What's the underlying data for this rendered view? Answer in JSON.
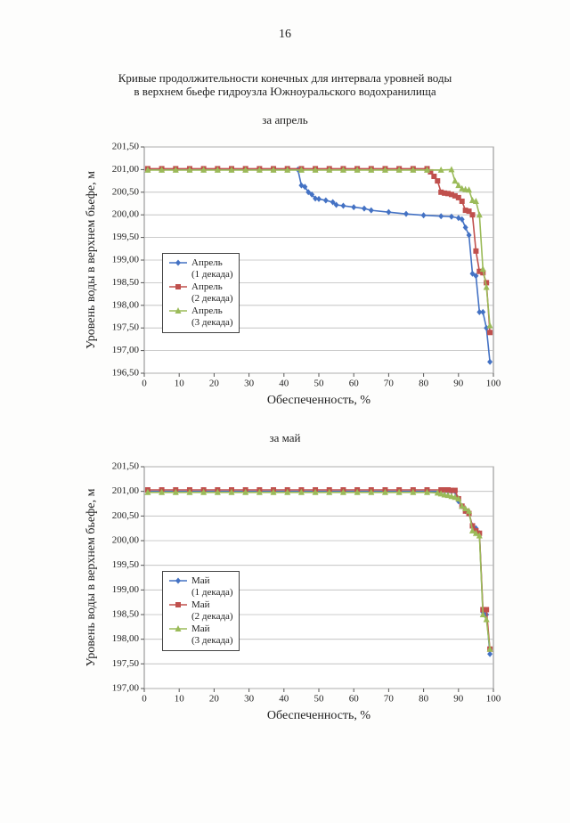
{
  "page_number": "16",
  "title": "Кривые продолжительности конечных для интервала уровней воды\nв верхнем бьефе гидроузла Южноуральского водохранилища",
  "chart_data": [
    {
      "type": "line",
      "title": "за апрель",
      "x_label": "Обеспеченность, %",
      "y_label": "Уровень воды в верхнем бьефе, м",
      "xlim": [
        0,
        100
      ],
      "xticks": [
        0,
        10,
        20,
        30,
        40,
        50,
        60,
        70,
        80,
        90,
        100
      ],
      "ylim": [
        196.5,
        201.5
      ],
      "yticks": [
        {
          "value": 196.5,
          "label": "196,50"
        },
        {
          "value": 197,
          "label": "197,00"
        },
        {
          "value": 197.5,
          "label": "197,50"
        },
        {
          "value": 198,
          "label": "198,00"
        },
        {
          "value": 198.5,
          "label": "198,50"
        },
        {
          "value": 199,
          "label": "199,00"
        },
        {
          "value": 199.5,
          "label": "199,50"
        },
        {
          "value": 200,
          "label": "200,00"
        },
        {
          "value": 200.5,
          "label": "200,50"
        },
        {
          "value": 201,
          "label": "201,00"
        },
        {
          "value": 201.5,
          "label": "201,50"
        }
      ],
      "grid": true,
      "legend": "left",
      "series": [
        {
          "name": "Апрель\n(1 декада)",
          "color": "#4472c4",
          "marker": "diamond",
          "x": [
            1,
            5,
            9,
            13,
            17,
            21,
            25,
            29,
            33,
            37,
            41,
            44,
            45,
            46,
            47,
            48,
            49,
            50,
            52,
            54,
            55,
            57,
            60,
            63,
            65,
            70,
            75,
            80,
            85,
            88,
            90,
            91,
            92,
            93,
            94,
            95,
            96,
            97,
            98,
            99
          ],
          "values": [
            201.0,
            201.0,
            201.0,
            201.0,
            201.0,
            201.0,
            201.0,
            201.0,
            201.0,
            201.0,
            201.0,
            201.0,
            200.65,
            200.62,
            200.5,
            200.45,
            200.36,
            200.35,
            200.32,
            200.28,
            200.22,
            200.2,
            200.17,
            200.14,
            200.1,
            200.06,
            200.02,
            199.99,
            199.97,
            199.96,
            199.93,
            199.9,
            199.72,
            199.55,
            198.7,
            198.65,
            197.85,
            197.85,
            197.5,
            196.75
          ]
        },
        {
          "name": "Апрель\n(2 декада)",
          "color": "#c0504d",
          "marker": "square",
          "x": [
            1,
            5,
            9,
            13,
            17,
            21,
            25,
            29,
            33,
            37,
            41,
            45,
            49,
            53,
            57,
            61,
            65,
            69,
            73,
            77,
            81,
            82,
            83,
            84,
            85,
            86,
            87,
            88,
            89,
            90,
            91,
            92,
            93,
            94,
            95,
            96,
            97,
            98,
            99
          ],
          "values": [
            201.02,
            201.02,
            201.02,
            201.02,
            201.02,
            201.02,
            201.02,
            201.02,
            201.02,
            201.02,
            201.02,
            201.02,
            201.02,
            201.02,
            201.02,
            201.02,
            201.02,
            201.02,
            201.02,
            201.02,
            201.02,
            200.95,
            200.85,
            200.75,
            200.5,
            200.48,
            200.47,
            200.45,
            200.42,
            200.38,
            200.3,
            200.1,
            200.08,
            200.0,
            199.2,
            198.75,
            198.72,
            198.5,
            197.4
          ]
        },
        {
          "name": "Апрель\n(3 декада)",
          "color": "#9bbb59",
          "marker": "triangle",
          "x": [
            1,
            5,
            9,
            13,
            17,
            21,
            25,
            29,
            33,
            37,
            41,
            45,
            49,
            53,
            57,
            61,
            65,
            69,
            73,
            77,
            81,
            85,
            88,
            89,
            90,
            91,
            92,
            93,
            94,
            95,
            96,
            97,
            98,
            99
          ],
          "values": [
            200.99,
            200.99,
            200.99,
            200.99,
            200.99,
            200.99,
            200.99,
            200.99,
            200.99,
            200.99,
            200.99,
            200.99,
            200.99,
            200.99,
            200.99,
            200.99,
            200.99,
            200.99,
            200.99,
            200.99,
            200.99,
            200.99,
            201.0,
            200.75,
            200.65,
            200.58,
            200.56,
            200.55,
            200.32,
            200.3,
            200.0,
            198.8,
            198.4,
            197.55
          ]
        }
      ]
    },
    {
      "type": "line",
      "title": "за май",
      "x_label": "Обеспеченность, %",
      "y_label": "Уровень воды в верхнем бьефе, м",
      "xlim": [
        0,
        100
      ],
      "xticks": [
        0,
        10,
        20,
        30,
        40,
        50,
        60,
        70,
        80,
        90,
        100
      ],
      "ylim": [
        197,
        201.5
      ],
      "yticks": [
        {
          "value": 197,
          "label": "197,00"
        },
        {
          "value": 197.5,
          "label": "197,50"
        },
        {
          "value": 198,
          "label": "198,00"
        },
        {
          "value": 198.5,
          "label": "198,50"
        },
        {
          "value": 199,
          "label": "199,00"
        },
        {
          "value": 199.5,
          "label": "199,50"
        },
        {
          "value": 200,
          "label": "200,00"
        },
        {
          "value": 200.5,
          "label": "200,50"
        },
        {
          "value": 201,
          "label": "201,00"
        },
        {
          "value": 201.5,
          "label": "201,50"
        }
      ],
      "grid": true,
      "legend": "left",
      "series": [
        {
          "name": "Май\n(1 декада)",
          "color": "#4472c4",
          "marker": "diamond",
          "x": [
            1,
            5,
            9,
            13,
            17,
            21,
            25,
            29,
            33,
            37,
            41,
            45,
            49,
            53,
            57,
            61,
            65,
            69,
            73,
            77,
            81,
            85,
            86,
            87,
            88,
            89,
            90,
            91,
            92,
            93,
            94,
            95,
            96,
            97,
            98,
            99
          ],
          "values": [
            201.0,
            201.0,
            201.0,
            201.0,
            201.0,
            201.0,
            201.0,
            201.0,
            201.0,
            201.0,
            201.0,
            201.0,
            201.0,
            201.0,
            201.0,
            201.0,
            201.0,
            201.0,
            201.0,
            201.0,
            201.0,
            201.0,
            201.0,
            201.0,
            201.0,
            201.0,
            200.8,
            200.7,
            200.6,
            200.55,
            200.3,
            200.25,
            200.15,
            198.55,
            198.5,
            197.7
          ]
        },
        {
          "name": "Май\n(2 декада)",
          "color": "#c0504d",
          "marker": "square",
          "x": [
            1,
            5,
            9,
            13,
            17,
            21,
            25,
            29,
            33,
            37,
            41,
            45,
            49,
            53,
            57,
            61,
            65,
            69,
            73,
            77,
            81,
            85,
            86,
            87,
            88,
            89,
            90,
            91,
            92,
            93,
            94,
            95,
            96,
            97,
            98,
            99
          ],
          "values": [
            201.03,
            201.03,
            201.03,
            201.03,
            201.03,
            201.03,
            201.03,
            201.03,
            201.03,
            201.03,
            201.03,
            201.03,
            201.03,
            201.03,
            201.03,
            201.03,
            201.03,
            201.03,
            201.03,
            201.03,
            201.03,
            201.03,
            201.03,
            201.03,
            201.02,
            201.02,
            200.85,
            200.7,
            200.6,
            200.55,
            200.3,
            200.2,
            200.15,
            198.6,
            198.6,
            197.8
          ]
        },
        {
          "name": "Май\n(3 декада)",
          "color": "#9bbb59",
          "marker": "triangle",
          "x": [
            1,
            5,
            9,
            13,
            17,
            21,
            25,
            29,
            33,
            37,
            41,
            45,
            49,
            53,
            57,
            61,
            65,
            69,
            73,
            77,
            81,
            84,
            85,
            86,
            87,
            88,
            89,
            90,
            91,
            92,
            93,
            94,
            95,
            96,
            97,
            98,
            99
          ],
          "values": [
            200.98,
            200.98,
            200.98,
            200.98,
            200.98,
            200.98,
            200.98,
            200.98,
            200.98,
            200.98,
            200.98,
            200.98,
            200.98,
            200.98,
            200.98,
            200.98,
            200.98,
            200.98,
            200.98,
            200.98,
            200.98,
            200.97,
            200.95,
            200.93,
            200.92,
            200.9,
            200.88,
            200.85,
            200.7,
            200.65,
            200.6,
            200.2,
            200.15,
            200.1,
            198.5,
            198.4,
            197.8
          ]
        }
      ]
    }
  ]
}
